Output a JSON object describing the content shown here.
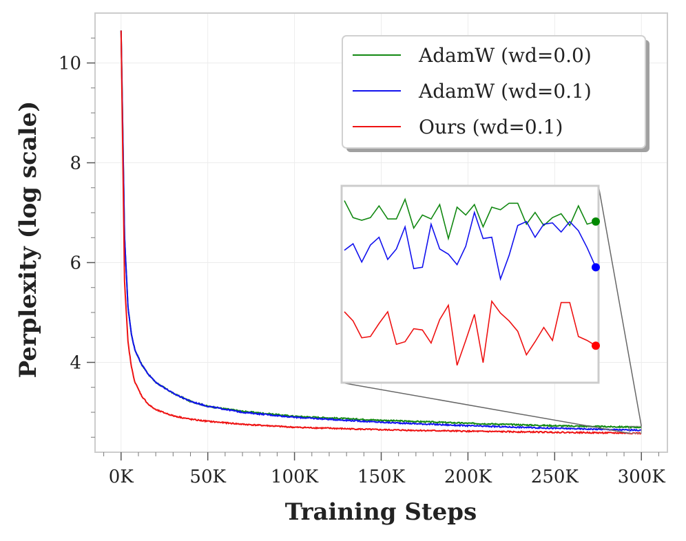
{
  "chart_data": {
    "type": "line",
    "xlabel": "Training Steps",
    "ylabel": "Perplexity (log scale)",
    "xlim": [
      -15000,
      315000
    ],
    "ylim": [
      2.2,
      11.0
    ],
    "x_ticks": [
      0,
      50000,
      100000,
      150000,
      200000,
      250000,
      300000
    ],
    "x_tick_labels": [
      "0K",
      "50K",
      "100K",
      "150K",
      "200K",
      "250K",
      "300K"
    ],
    "y_ticks": [
      4,
      6,
      8,
      10
    ],
    "y_tick_labels": [
      "4",
      "6",
      "8",
      "10"
    ],
    "y_minor_ticks": [
      2.5,
      3.0,
      3.5,
      4.5,
      5.0,
      5.5,
      6.5,
      7.0,
      7.5,
      8.5,
      9.0,
      9.5,
      10.5
    ],
    "grid": true,
    "legend_position": "top-right",
    "series": [
      {
        "name": "AdamW (wd=0.0)",
        "color": "#118811",
        "x": [
          0,
          2000,
          4000,
          6000,
          8000,
          12000,
          16000,
          20000,
          30000,
          40000,
          50000,
          70000,
          100000,
          150000,
          200000,
          250000,
          300000
        ],
        "y": [
          10.65,
          6.5,
          5.1,
          4.55,
          4.25,
          3.95,
          3.75,
          3.6,
          3.38,
          3.22,
          3.12,
          3.02,
          2.92,
          2.84,
          2.78,
          2.73,
          2.7
        ]
      },
      {
        "name": "AdamW (wd=0.1)",
        "color": "#1111ee",
        "x": [
          0,
          2000,
          4000,
          6000,
          8000,
          12000,
          16000,
          20000,
          30000,
          40000,
          50000,
          70000,
          100000,
          150000,
          200000,
          250000,
          300000
        ],
        "y": [
          10.65,
          6.5,
          5.1,
          4.55,
          4.25,
          3.95,
          3.75,
          3.6,
          3.38,
          3.22,
          3.12,
          3.0,
          2.9,
          2.8,
          2.73,
          2.68,
          2.64
        ]
      },
      {
        "name": "Ours (wd=0.1)",
        "color": "#ee1111",
        "x": [
          0,
          2000,
          4000,
          6000,
          8000,
          12000,
          16000,
          20000,
          30000,
          40000,
          50000,
          70000,
          100000,
          150000,
          200000,
          250000,
          300000
        ],
        "y": [
          10.65,
          5.6,
          4.4,
          3.9,
          3.6,
          3.32,
          3.15,
          3.05,
          2.93,
          2.86,
          2.82,
          2.76,
          2.7,
          2.65,
          2.62,
          2.6,
          2.58
        ]
      }
    ],
    "inset": {
      "xlim": [
        293000,
        300000
      ],
      "series_y": [
        [
          2.731,
          2.718,
          2.716,
          2.718,
          2.727,
          2.717,
          2.717,
          2.732,
          2.71,
          2.72,
          2.717,
          2.728,
          2.702,
          2.726,
          2.72,
          2.728,
          2.711,
          2.726,
          2.724,
          2.729,
          2.729,
          2.713,
          2.722,
          2.712,
          2.718,
          2.721,
          2.712,
          2.727,
          2.713,
          2.715
        ],
        [
          2.693,
          2.698,
          2.684,
          2.697,
          2.703,
          2.686,
          2.694,
          2.711,
          2.679,
          2.68,
          2.713,
          2.694,
          2.69,
          2.682,
          2.696,
          2.722,
          2.702,
          2.703,
          2.671,
          2.689,
          2.712,
          2.715,
          2.703,
          2.713,
          2.714,
          2.707,
          2.715,
          2.708,
          2.695,
          2.68
        ],
        [
          2.646,
          2.639,
          2.626,
          2.627,
          2.637,
          2.646,
          2.621,
          2.623,
          2.633,
          2.632,
          2.622,
          2.64,
          2.651,
          2.605,
          2.624,
          2.644,
          2.607,
          2.654,
          2.645,
          2.639,
          2.631,
          2.613,
          2.623,
          2.634,
          2.624,
          2.653,
          2.653,
          2.627,
          2.624,
          2.62
        ]
      ]
    }
  }
}
